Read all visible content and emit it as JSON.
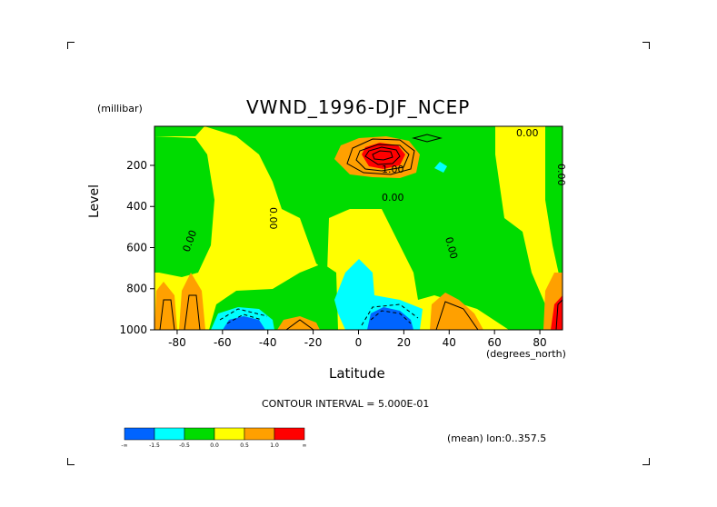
{
  "chart_data": {
    "type": "heatmap",
    "title": "VWND_1996-DJF_NCEP",
    "ylabel": "Level",
    "yunit": "(millibar)",
    "xlabel": "Latitude",
    "xunit": "(degrees_north)",
    "xlim": [
      -90,
      90
    ],
    "ylim": [
      1000,
      10
    ],
    "xticks": [
      "-80",
      "-60",
      "-40",
      "-20",
      "0",
      "20",
      "40",
      "60",
      "80"
    ],
    "yticks": [
      "200",
      "400",
      "600",
      "800",
      "1000"
    ],
    "contour_interval_label": "CONTOUR INTERVAL = 5.000E-01",
    "mean_label": "(mean) lon:0..357.5",
    "contour_labels": [
      "0.00",
      "0.00",
      "0.00",
      "0.00",
      "0.00",
      "1.00",
      "0.00"
    ],
    "legend": {
      "colors": [
        "#0064ff",
        "#00ffff",
        "#00dc00",
        "#ffff00",
        "#ffa000",
        "#ff0000"
      ],
      "labels": [
        "-∞",
        "-1.5",
        "-0.5",
        "0.0",
        "0.5",
        "1.0",
        "∞"
      ]
    },
    "features": [
      {
        "type": "max",
        "lat": 12,
        "level": 150,
        "value": 1.5
      },
      {
        "type": "min",
        "lat": 12,
        "level": 950,
        "value": -1.5
      },
      {
        "type": "min",
        "lat": -55,
        "level": 980,
        "value": -1.5
      },
      {
        "type": "max",
        "lat": -85,
        "level": 900,
        "value": 0.7
      },
      {
        "type": "max",
        "lat": 85,
        "level": 900,
        "value": 1.2
      }
    ]
  },
  "colors": {
    "blue": "#0064ff",
    "cyan": "#00ffff",
    "green": "#00dc00",
    "yellow": "#ffff00",
    "orange": "#ffa000",
    "red": "#ff0000"
  }
}
